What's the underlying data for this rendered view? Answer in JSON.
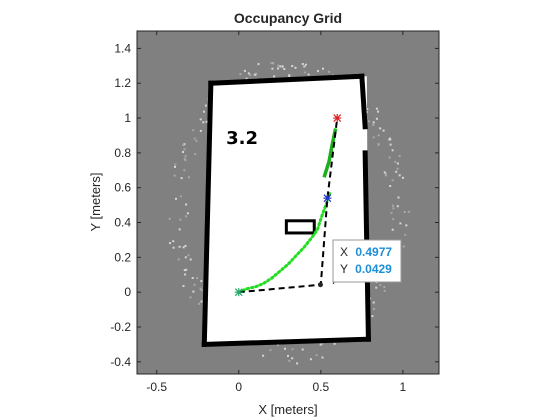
{
  "chart_data": {
    "type": "scatter",
    "title": "Occupancy Grid",
    "xlabel": "X [meters]",
    "ylabel": "Y [meters]",
    "xlim": [
      -0.62,
      1.22
    ],
    "ylim": [
      -0.47,
      1.5
    ],
    "xticks": [
      -0.5,
      0,
      0.5,
      1
    ],
    "xtick_labels": [
      "-0.5",
      "0",
      "0.5",
      "1"
    ],
    "yticks": [
      -0.4,
      -0.2,
      0,
      0.2,
      0.4,
      0.6,
      0.8,
      1,
      1.2,
      1.4
    ],
    "ytick_labels": [
      "-0.4",
      "-0.2",
      "0",
      "0.2",
      "0.4",
      "0.6",
      "0.8",
      "1",
      "1.2",
      "1.4"
    ],
    "grid": false,
    "colors": {
      "unknown": "#808080",
      "free": "#ffffff",
      "occupied": "#000000",
      "path": "#22dd22",
      "path_solid": "#1ab01a",
      "plan": "#000000",
      "start": "#22aa66",
      "goal": "#dd2222",
      "waypoint": "#2233cc"
    },
    "free_region": [
      [
        -0.17,
        1.2
      ],
      [
        0.78,
        1.24
      ],
      [
        0.79,
        -0.27
      ],
      [
        -0.21,
        -0.3
      ]
    ],
    "walls": [
      [
        [
          -0.17,
          1.2
        ],
        [
          0.75,
          1.24
        ]
      ],
      [
        [
          0.75,
          1.24
        ],
        [
          0.77,
          0.95
        ]
      ],
      [
        [
          0.77,
          0.8
        ],
        [
          0.79,
          -0.27
        ]
      ],
      [
        [
          0.79,
          -0.27
        ],
        [
          -0.21,
          -0.3
        ]
      ],
      [
        [
          -0.21,
          -0.3
        ],
        [
          -0.17,
          1.2
        ]
      ]
    ],
    "obstacles": [
      {
        "label": "3.2",
        "x": 0.02,
        "y": 0.88
      },
      {
        "type": "box",
        "x0": 0.29,
        "y0": 0.34,
        "x1": 0.46,
        "y1": 0.41
      }
    ],
    "series": [
      {
        "style": "dotted",
        "x": [
          0.0,
          0.05,
          0.1,
          0.15,
          0.2,
          0.25,
          0.3,
          0.35,
          0.4,
          0.45,
          0.48,
          0.5,
          0.53,
          0.56
        ],
        "y": [
          0.0,
          0.02,
          0.03,
          0.05,
          0.08,
          0.12,
          0.16,
          0.21,
          0.26,
          0.32,
          0.36,
          0.42,
          0.5,
          0.58
        ]
      },
      {
        "style": "solid",
        "x": [
          0.52,
          0.55,
          0.57,
          0.59
        ],
        "y": [
          0.66,
          0.75,
          0.85,
          0.94
        ]
      },
      {
        "style": "dashed",
        "x": [
          0.0,
          0.5,
          0.54,
          0.6
        ],
        "y": [
          0.0,
          0.043,
          0.54,
          1.0
        ]
      }
    ],
    "markers": [
      {
        "kind": "start",
        "x": 0.0,
        "y": 0.0
      },
      {
        "kind": "goal",
        "x": 0.6,
        "y": 1.0
      },
      {
        "kind": "waypoint",
        "x": 0.54,
        "y": 0.54
      },
      {
        "kind": "selected",
        "x": 0.4977,
        "y": 0.0429
      }
    ],
    "datatip": {
      "x_label": "X",
      "x_value": "0.4977",
      "y_label": "Y",
      "y_value": "0.0429"
    }
  }
}
